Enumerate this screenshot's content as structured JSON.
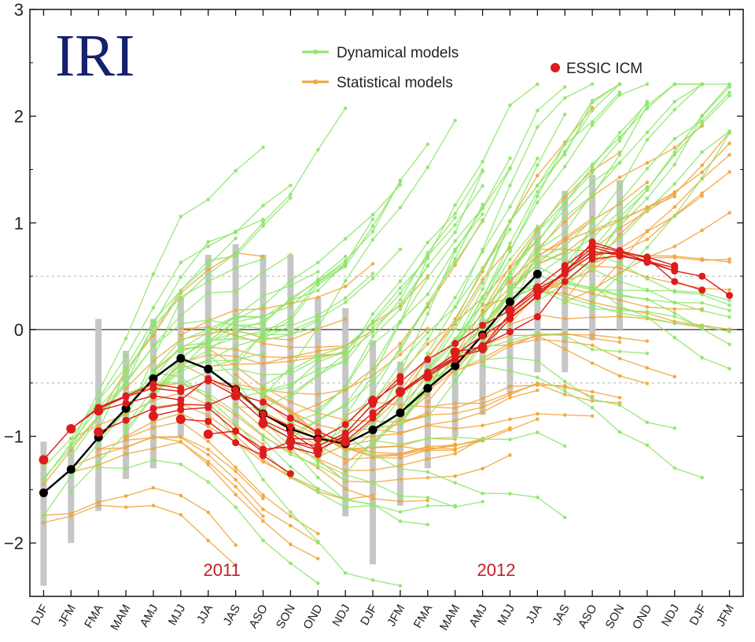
{
  "logo": "IRI",
  "chart_data": {
    "type": "line",
    "x_categories": [
      "DJF",
      "JFM",
      "FMA",
      "MAM",
      "AMJ",
      "MJJ",
      "JJA",
      "JAS",
      "ASO",
      "SON",
      "OND",
      "NDJ",
      "DJF",
      "JFM",
      "FMA",
      "MAM",
      "AMJ",
      "MJJ",
      "JJA",
      "JAS",
      "ASO",
      "SON",
      "OND",
      "NDJ",
      "DJF",
      "JFM"
    ],
    "ylim": [
      -2.5,
      3
    ],
    "y_ticks": [
      -2,
      -1,
      0,
      1,
      2,
      3
    ],
    "y_tick_labels": [
      "−2",
      "−1",
      "0",
      "1",
      "2",
      "3"
    ],
    "reference_lines": [
      -0.5,
      0.5
    ],
    "zero_line": 0,
    "year_labels": [
      {
        "text": "2011",
        "at_index": 7
      },
      {
        "text": "2012",
        "at_index": 17
      }
    ],
    "legend": {
      "dynamical": "Dynamical models",
      "statistical": "Statistical models",
      "essic": "ESSIC ICM"
    },
    "colors": {
      "dynamical": "#8ee66a",
      "statistical": "#f0a53a",
      "essic": "#dd1c1c",
      "observed": "#000000",
      "range": "#c6c6c6"
    },
    "observed": {
      "x": [
        0,
        1,
        2,
        3,
        4,
        5,
        6,
        7,
        8,
        9,
        10,
        11,
        12,
        13,
        14,
        15,
        16,
        17,
        18
      ],
      "y": [
        -1.53,
        -1.31,
        -1.01,
        -0.74,
        -0.46,
        -0.27,
        -0.37,
        -0.56,
        -0.79,
        -0.93,
        -1.02,
        -1.07,
        -0.94,
        -0.78,
        -0.55,
        -0.34,
        -0.05,
        0.26,
        0.52
      ]
    },
    "obs_spread": [
      [
        0,
        -2.4,
        -1.05
      ],
      [
        1,
        -2.0,
        -1.1
      ],
      [
        2,
        -1.7,
        0.1
      ],
      [
        3,
        -1.4,
        -0.2
      ],
      [
        4,
        -1.3,
        0.1
      ],
      [
        5,
        -1.0,
        0.3
      ],
      [
        6,
        -0.9,
        0.7
      ],
      [
        7,
        -0.9,
        0.8
      ],
      [
        8,
        -0.9,
        0.7
      ],
      [
        9,
        -1.0,
        0.7
      ],
      [
        10,
        -1.2,
        0.3
      ],
      [
        11,
        -1.75,
        0.2
      ],
      [
        12,
        -2.2,
        -0.1
      ],
      [
        13,
        -1.65,
        -0.3
      ],
      [
        14,
        -1.3,
        -0.3
      ],
      [
        15,
        -1.0,
        -0.2
      ],
      [
        16,
        -0.8,
        0.1
      ],
      [
        17,
        -0.6,
        0.5
      ],
      [
        18,
        -0.4,
        0.95
      ],
      [
        19,
        -0.4,
        1.3
      ],
      [
        20,
        -0.1,
        1.45
      ],
      [
        21,
        0.0,
        1.4
      ]
    ],
    "essic_icm": [
      {
        "start": 0,
        "values": [
          -1.22,
          -0.93,
          -0.73,
          -0.62,
          -0.51,
          -0.55
        ]
      },
      {
        "start": 1,
        "values": [
          -0.93,
          -0.74,
          -0.63,
          -0.55,
          -0.58,
          -0.48,
          -0.62
        ]
      },
      {
        "start": 2,
        "values": [
          -0.76,
          -0.69,
          -0.62,
          -0.66,
          -0.46,
          -0.56,
          -0.79,
          -0.91
        ]
      },
      {
        "start": 2,
        "values": [
          -0.96,
          -0.85,
          -0.74,
          -0.7,
          -0.71,
          -0.6,
          -0.68,
          -0.83,
          -0.96,
          -1.06
        ]
      },
      {
        "start": 4,
        "values": [
          -0.81,
          -0.75,
          -0.73,
          -0.95,
          -1.15,
          -1.05,
          -1.13
        ]
      },
      {
        "start": 5,
        "values": [
          -0.84,
          -0.86,
          -1.06,
          -1.18,
          -1.35
        ]
      },
      {
        "start": 6,
        "values": [
          -0.98,
          -0.95,
          -1.12,
          -1.1,
          -1.17
        ]
      },
      {
        "start": 7,
        "values": [
          -0.62,
          -0.85,
          -0.97,
          -1.13,
          -0.99
        ]
      },
      {
        "start": 8,
        "values": [
          -0.88,
          -1.02,
          -1.03,
          -0.89,
          -0.65
        ]
      },
      {
        "start": 9,
        "values": [
          -1.05,
          -1.09,
          -0.97,
          -0.7,
          -0.44
        ]
      },
      {
        "start": 10,
        "values": [
          -1.13,
          -1.0,
          -0.78,
          -0.6,
          -0.42,
          -0.27
        ]
      },
      {
        "start": 11,
        "values": [
          -1.05,
          -0.83,
          -0.59,
          -0.4,
          -0.26,
          -0.19
        ]
      },
      {
        "start": 12,
        "values": [
          -0.67,
          -0.49,
          -0.28,
          -0.13,
          0.04,
          0.18,
          0.37
        ]
      },
      {
        "start": 13,
        "values": [
          -0.58,
          -0.4,
          -0.23,
          -0.06,
          0.11,
          0.31,
          0.55,
          0.73,
          0.7,
          0.64
        ]
      },
      {
        "start": 14,
        "values": [
          -0.44,
          -0.28,
          -0.15,
          -0.02,
          0.12,
          0.45,
          0.66,
          0.69,
          0.64,
          0.55
        ]
      },
      {
        "start": 15,
        "values": [
          -0.21,
          -0.16,
          0.15,
          0.35,
          0.52,
          0.82,
          0.74,
          0.67,
          0.45,
          0.37
        ]
      },
      {
        "start": 16,
        "values": [
          -0.17,
          0.1,
          0.32,
          0.55,
          0.77,
          0.7,
          0.63,
          0.55,
          0.5,
          0.32
        ]
      },
      {
        "start": 17,
        "values": [
          0.18,
          0.4,
          0.6,
          0.79,
          0.73,
          0.64,
          0.58
        ]
      },
      {
        "start": 18,
        "values": [
          0.38,
          0.52,
          0.7,
          0.73,
          0.68,
          0.6
        ]
      }
    ]
  }
}
